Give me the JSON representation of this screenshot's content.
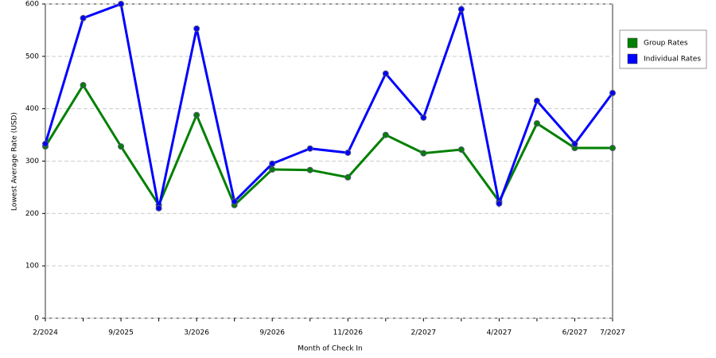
{
  "chart_data": {
    "type": "line",
    "x_label": "Month of Check In",
    "y_label": "Lowest Average Rate (USD)",
    "categories": [
      "2/2024",
      null,
      "9/2025",
      null,
      "3/2026",
      null,
      "9/2026",
      null,
      "11/2026",
      null,
      "2/2027",
      null,
      "4/2027",
      null,
      "6/2027",
      "7/2027"
    ],
    "series": [
      {
        "name": "Group Rates",
        "color": "#008000",
        "values": [
          328,
          445,
          328,
          216,
          388,
          216,
          284,
          283,
          269,
          350,
          315,
          322,
          223,
          372,
          325,
          325
        ]
      },
      {
        "name": "Individual Rates",
        "color": "#0000ff",
        "values": [
          333,
          573,
          600,
          210,
          553,
          223,
          295,
          324,
          316,
          467,
          383,
          590,
          219,
          415,
          333,
          430
        ]
      }
    ],
    "ylim": [
      0,
      600
    ],
    "yticks": [
      0,
      100,
      200,
      300,
      400,
      500,
      600
    ],
    "grid": true,
    "legend": "right"
  }
}
